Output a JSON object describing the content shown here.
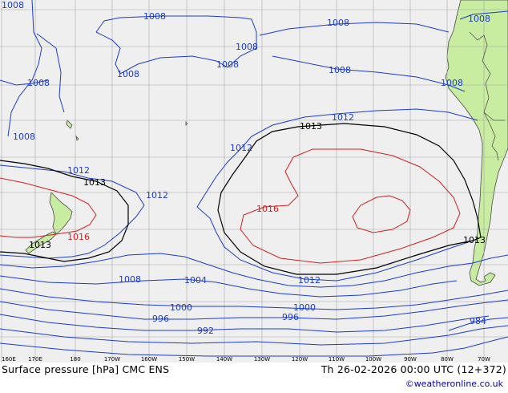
{
  "map": {
    "background_color": "#efefef",
    "land_color": "#c8eca0",
    "grid_color": "#a8a8a8",
    "colors": {
      "low": "#1a3ccf",
      "mid": "#000000",
      "high": "#d22020"
    },
    "longitude_labels": [
      "160E",
      "170E",
      "180",
      "170W",
      "160W",
      "150W",
      "140W",
      "130W",
      "120W",
      "110W",
      "100W",
      "90W",
      "80W",
      "70W"
    ],
    "isobar_labels": {
      "l1008_a": "1008",
      "l1008_b": "1008",
      "l1008_c": "1008",
      "l1008_d": "1008",
      "l1008_e": "1008",
      "l1008_f": "1008",
      "l1008_g": "1008",
      "l1008_h": "1008",
      "l1008_i": "1008",
      "l1008_j": "1008",
      "l1008_k": "1008",
      "l1008_l": "1008",
      "l1012_a": "1012",
      "l1012_b": "1012",
      "l1012_c": "1012",
      "l1012_d": "1012",
      "l1012_e": "1012",
      "l1013_a": "1013",
      "l1013_b": "1013",
      "l1013_c": "1013",
      "l1013_d": "1013",
      "l1016_a": "1016",
      "l1016_b": "1016",
      "l1004": "1004",
      "l1000_a": "1000",
      "l1000_b": "1000",
      "l996_a": "996",
      "l996_b": "996",
      "l992": "992",
      "l984": "984"
    }
  },
  "footer": {
    "title": "Surface pressure [hPa] CMC ENS",
    "valid_time": "Th 26-02-2026 00:00 UTC (12+372)",
    "credit": "©weatheronline.co.uk"
  }
}
